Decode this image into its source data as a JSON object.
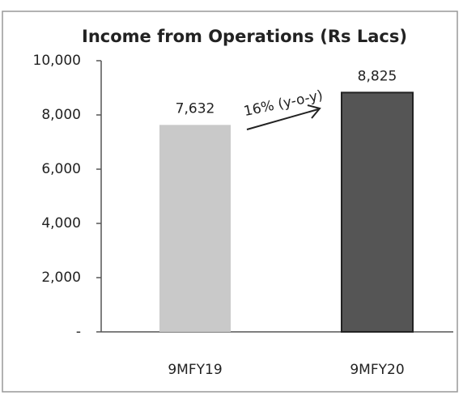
{
  "chart_data": {
    "type": "bar",
    "title": "Income from Operations (Rs Lacs)",
    "categories": [
      "9MFY19",
      "9MFY20"
    ],
    "values": [
      7632,
      8825
    ],
    "value_labels": [
      "7,632",
      "8,825"
    ],
    "colors": [
      "#c9c9c9",
      "#555555"
    ],
    "ylim": [
      0,
      10000
    ],
    "yticks": [
      {
        "value": 0,
        "label": "-"
      },
      {
        "value": 2000,
        "label": "2,000"
      },
      {
        "value": 4000,
        "label": "4,000"
      },
      {
        "value": 6000,
        "label": "6,000"
      },
      {
        "value": 8000,
        "label": "8,000"
      },
      {
        "value": 10000,
        "label": "10,000"
      }
    ],
    "annotation": "16% (y-o-y)"
  }
}
